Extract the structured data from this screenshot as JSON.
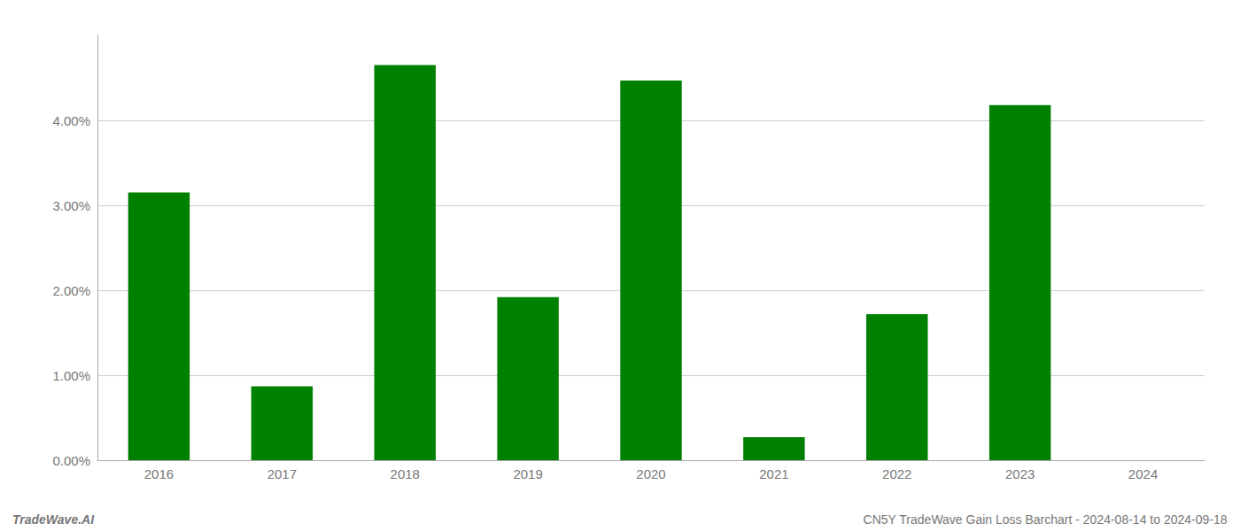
{
  "chart_data": {
    "type": "bar",
    "categories": [
      "2016",
      "2017",
      "2018",
      "2019",
      "2020",
      "2021",
      "2022",
      "2023",
      "2024"
    ],
    "values": [
      3.15,
      0.87,
      4.65,
      1.92,
      4.47,
      0.27,
      1.72,
      4.18,
      0.0
    ],
    "color": "#008000",
    "ylim": [
      0,
      5.0
    ],
    "yticks": [
      {
        "value": 0.0,
        "label": "0.00%"
      },
      {
        "value": 1.0,
        "label": "1.00%"
      },
      {
        "value": 2.0,
        "label": "2.00%"
      },
      {
        "value": 3.0,
        "label": "3.00%"
      },
      {
        "value": 4.0,
        "label": "4.00%"
      }
    ],
    "grid": true,
    "annotations": [
      "TradeWave.AI",
      "CN5Y TradeWave Gain Loss Barchart - 2024-08-14 to 2024-09-18"
    ]
  }
}
